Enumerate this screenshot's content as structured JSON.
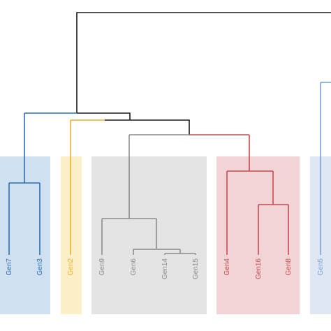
{
  "diagram": {
    "type": "dendrogram",
    "colors": {
      "root": "#1a1a1a",
      "blue": "#2e6db4",
      "yellow": "#e8b12a",
      "gray": "#8c8c8c",
      "red": "#c84a4f",
      "lightblue": "#7aa3d4",
      "blue_box": "#cfe0f1",
      "yellow_box": "#fbefc8",
      "gray_box": "#e4e4e4",
      "red_box": "#f2d4d6",
      "lightblue_box": "#dfe7f4"
    },
    "clusters": [
      {
        "name": "blue",
        "leaves": [
          "Gen7",
          "Gen3"
        ]
      },
      {
        "name": "yellow",
        "leaves": [
          "Gen2"
        ]
      },
      {
        "name": "gray",
        "leaves": [
          "Gen9",
          "Gen6",
          "Gen14",
          "Gen15"
        ]
      },
      {
        "name": "red",
        "leaves": [
          "Gen4",
          "Gen16",
          "Gen8"
        ]
      },
      {
        "name": "lightblue",
        "leaves": [
          "Gen5"
        ]
      }
    ]
  }
}
